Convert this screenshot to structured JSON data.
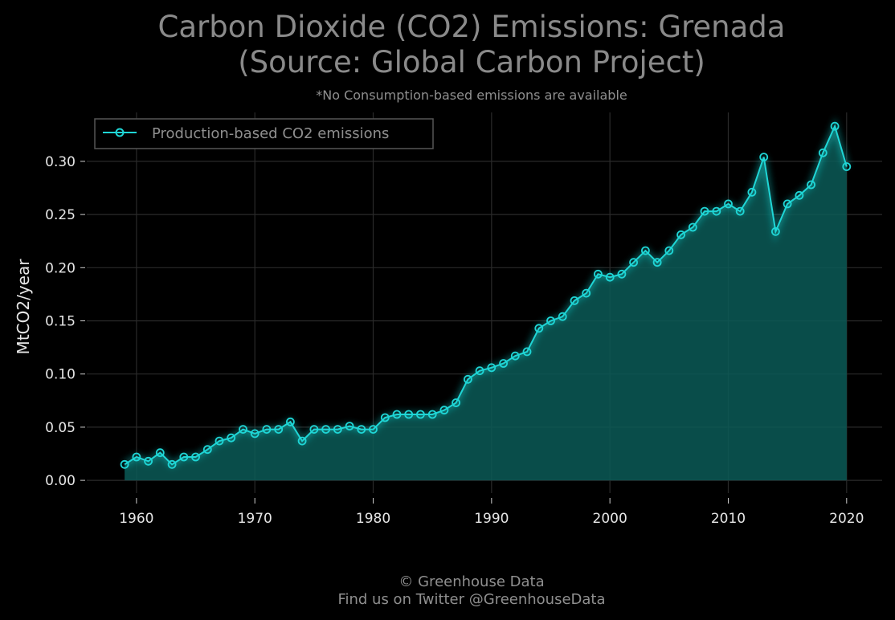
{
  "title": {
    "line1": "Carbon Dioxide (CO2) Emissions: Grenada",
    "line2": "(Source: Global Carbon Project)"
  },
  "subtitle": "*No Consumption-based emissions are available",
  "footer": {
    "line1": "© Greenhouse Data",
    "line2": "Find us on Twitter @GreenhouseData"
  },
  "colors": {
    "background": "#000000",
    "series": "#1fd6d6",
    "area": "#0a5a57",
    "grid": "#2a2a2a",
    "text": "#8a8a8a"
  },
  "chart_data": {
    "type": "area",
    "title": "Carbon Dioxide (CO2) Emissions: Grenada (Source: Global Carbon Project)",
    "xlabel": "",
    "ylabel": "MtCO2/year",
    "xlim": [
      1955.8,
      2023
    ],
    "ylim": [
      -0.012,
      0.346
    ],
    "x_ticks": [
      1960,
      1970,
      1980,
      1990,
      2000,
      2010,
      2020
    ],
    "y_ticks": [
      "0.00",
      "0.05",
      "0.10",
      "0.15",
      "0.20",
      "0.25",
      "0.30"
    ],
    "y_tick_values": [
      0,
      0.05,
      0.1,
      0.15,
      0.2,
      0.25,
      0.3
    ],
    "grid": true,
    "legend_position": "top-left",
    "x": [
      1959,
      1960,
      1961,
      1962,
      1963,
      1964,
      1965,
      1966,
      1967,
      1968,
      1969,
      1970,
      1971,
      1972,
      1973,
      1974,
      1975,
      1976,
      1977,
      1978,
      1979,
      1980,
      1981,
      1982,
      1983,
      1984,
      1985,
      1986,
      1987,
      1988,
      1989,
      1990,
      1991,
      1992,
      1993,
      1994,
      1995,
      1996,
      1997,
      1998,
      1999,
      2000,
      2001,
      2002,
      2003,
      2004,
      2005,
      2006,
      2007,
      2008,
      2009,
      2010,
      2011,
      2012,
      2013,
      2014,
      2015,
      2016,
      2017,
      2018,
      2019,
      2020
    ],
    "series": [
      {
        "name": "Production-based CO2 emissions",
        "values": [
          0.015,
          0.022,
          0.018,
          0.026,
          0.015,
          0.022,
          0.022,
          0.029,
          0.037,
          0.04,
          0.048,
          0.044,
          0.048,
          0.048,
          0.055,
          0.037,
          0.048,
          0.048,
          0.048,
          0.051,
          0.048,
          0.048,
          0.059,
          0.062,
          0.062,
          0.062,
          0.062,
          0.066,
          0.073,
          0.095,
          0.103,
          0.106,
          0.11,
          0.117,
          0.121,
          0.143,
          0.15,
          0.154,
          0.169,
          0.176,
          0.194,
          0.191,
          0.194,
          0.205,
          0.216,
          0.205,
          0.216,
          0.231,
          0.238,
          0.253,
          0.253,
          0.26,
          0.253,
          0.271,
          0.304,
          0.234,
          0.26,
          0.268,
          0.278,
          0.308,
          0.333,
          0.295
        ]
      }
    ]
  }
}
